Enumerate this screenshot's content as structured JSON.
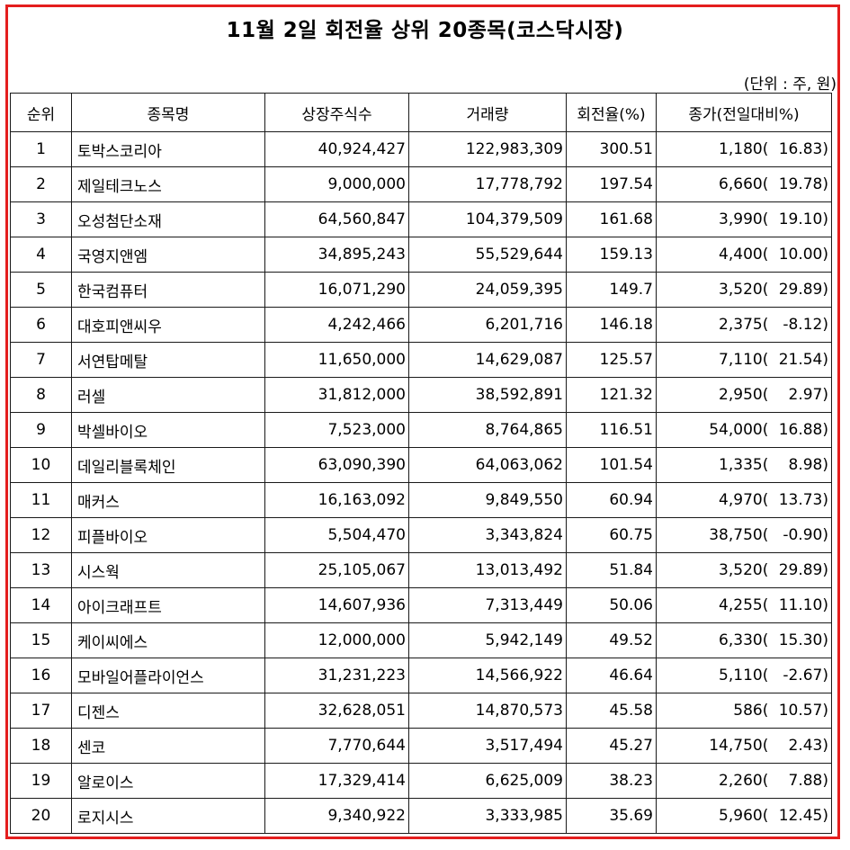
{
  "title": "11월 2일 회전율 상위 20종목(코스닥시장)",
  "unit": "(단위 : 주, 원)",
  "headers": [
    "순위",
    "종목명",
    "상장주식수",
    "거래량",
    "회전율(%)",
    "종가(전일대비%)"
  ],
  "colors": {
    "frame": "#e41e1e",
    "border": "#1a1a1a"
  },
  "rows": [
    {
      "rank": "1",
      "name": "토박스코리아",
      "listed": "40,924,427",
      "volume": "122,983,309",
      "turnover": "300.51",
      "close": "1,180",
      "change": "16.83"
    },
    {
      "rank": "2",
      "name": "제일테크노스",
      "listed": "9,000,000",
      "volume": "17,778,792",
      "turnover": "197.54",
      "close": "6,660",
      "change": "19.78"
    },
    {
      "rank": "3",
      "name": "오성첨단소재",
      "listed": "64,560,847",
      "volume": "104,379,509",
      "turnover": "161.68",
      "close": "3,990",
      "change": "19.10"
    },
    {
      "rank": "4",
      "name": "국영지앤엠",
      "listed": "34,895,243",
      "volume": "55,529,644",
      "turnover": "159.13",
      "close": "4,400",
      "change": "10.00"
    },
    {
      "rank": "5",
      "name": "한국컴퓨터",
      "listed": "16,071,290",
      "volume": "24,059,395",
      "turnover": "149.7",
      "close": "3,520",
      "change": "29.89"
    },
    {
      "rank": "6",
      "name": "대호피앤씨우",
      "listed": "4,242,466",
      "volume": "6,201,716",
      "turnover": "146.18",
      "close": "2,375",
      "change": "-8.12"
    },
    {
      "rank": "7",
      "name": "서연탑메탈",
      "listed": "11,650,000",
      "volume": "14,629,087",
      "turnover": "125.57",
      "close": "7,110",
      "change": "21.54"
    },
    {
      "rank": "8",
      "name": "러셀",
      "listed": "31,812,000",
      "volume": "38,592,891",
      "turnover": "121.32",
      "close": "2,950",
      "change": "2.97"
    },
    {
      "rank": "9",
      "name": "박셀바이오",
      "listed": "7,523,000",
      "volume": "8,764,865",
      "turnover": "116.51",
      "close": "54,000",
      "change": "16.88"
    },
    {
      "rank": "10",
      "name": "데일리블록체인",
      "listed": "63,090,390",
      "volume": "64,063,062",
      "turnover": "101.54",
      "close": "1,335",
      "change": "8.98"
    },
    {
      "rank": "11",
      "name": "매커스",
      "listed": "16,163,092",
      "volume": "9,849,550",
      "turnover": "60.94",
      "close": "4,970",
      "change": "13.73"
    },
    {
      "rank": "12",
      "name": "피플바이오",
      "listed": "5,504,470",
      "volume": "3,343,824",
      "turnover": "60.75",
      "close": "38,750",
      "change": "-0.90"
    },
    {
      "rank": "13",
      "name": "시스웍",
      "listed": "25,105,067",
      "volume": "13,013,492",
      "turnover": "51.84",
      "close": "3,520",
      "change": "29.89"
    },
    {
      "rank": "14",
      "name": "아이크래프트",
      "listed": "14,607,936",
      "volume": "7,313,449",
      "turnover": "50.06",
      "close": "4,255",
      "change": "11.10"
    },
    {
      "rank": "15",
      "name": "케이씨에스",
      "listed": "12,000,000",
      "volume": "5,942,149",
      "turnover": "49.52",
      "close": "6,330",
      "change": "15.30"
    },
    {
      "rank": "16",
      "name": "모바일어플라이언스",
      "listed": "31,231,223",
      "volume": "14,566,922",
      "turnover": "46.64",
      "close": "5,110",
      "change": "-2.67"
    },
    {
      "rank": "17",
      "name": "디젠스",
      "listed": "32,628,051",
      "volume": "14,870,573",
      "turnover": "45.58",
      "close": "586",
      "change": "10.57"
    },
    {
      "rank": "18",
      "name": "센코",
      "listed": "7,770,644",
      "volume": "3,517,494",
      "turnover": "45.27",
      "close": "14,750",
      "change": "2.43"
    },
    {
      "rank": "19",
      "name": "알로이스",
      "listed": "17,329,414",
      "volume": "6,625,009",
      "turnover": "38.23",
      "close": "2,260",
      "change": "7.88"
    },
    {
      "rank": "20",
      "name": "로지시스",
      "listed": "9,340,922",
      "volume": "3,333,985",
      "turnover": "35.69",
      "close": "5,960",
      "change": "12.45"
    }
  ]
}
